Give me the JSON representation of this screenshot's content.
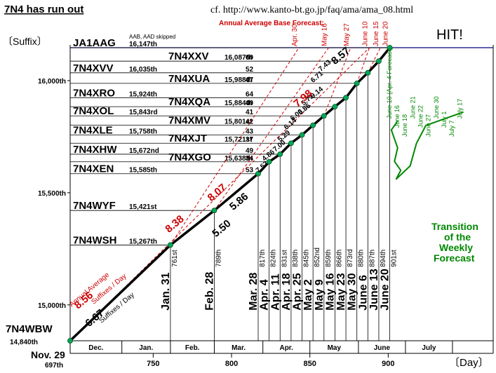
{
  "title": "7N4 has run out",
  "source": "cf. http://www.kanto-bt.go.jp/faq/ama/ama_08.html",
  "hit": "HIT!",
  "ylabel": "〔Suffix〕",
  "xlabel": "〔Day〕",
  "forecast_base_label": "Annual Average Base Forecast:",
  "trend_label": "Annual Average",
  "trend_rate": "8.56",
  "trend_unit": "Suffixes / Day",
  "actual_rate": "6.67",
  "actual_unit": "Suffixes / Day",
  "start_date": "Nov. 29",
  "start_day": "697th",
  "first_suffix": "7N4WBW",
  "first_number": "14,840th",
  "weekly_title": [
    "Transition",
    "of the",
    "Weekly",
    "Forecast"
  ],
  "colors": {
    "actual": "#000000",
    "forecast": "#cc0000",
    "weekly": "#008800",
    "point": "#00aa55",
    "hit_line": "#000080"
  },
  "chart_data": {
    "type": "line",
    "xlabel": "〔Day〕",
    "ylabel": "〔Suffix〕",
    "xlim": [
      697,
      967
    ],
    "ylim": [
      14840,
      16147
    ],
    "x_ticks": [
      750,
      800,
      850,
      900
    ],
    "y_ticks": [
      {
        "value": 15000,
        "label": "15,000th"
      },
      {
        "value": 15500,
        "label": "15,500th"
      },
      {
        "value": 16000,
        "label": "16,000th"
      }
    ],
    "month_labels": [
      "Dec.",
      "Jan.",
      "Feb.",
      "Mar.",
      "Apr.",
      "May",
      "June",
      "July"
    ],
    "month_bounds": [
      697,
      730,
      761,
      789,
      820,
      850,
      881,
      911,
      941,
      967
    ],
    "actual_series": {
      "name": "Actual",
      "points": [
        {
          "x": 697,
          "y": 14840
        },
        {
          "x": 761,
          "y": 15267
        },
        {
          "x": 789,
          "y": 15421
        },
        {
          "x": 817,
          "y": 15585
        },
        {
          "x": 824,
          "y": 15638
        },
        {
          "x": 831,
          "y": 15672
        },
        {
          "x": 838,
          "y": 15721
        },
        {
          "x": 845,
          "y": 15758
        },
        {
          "x": 852,
          "y": 15801
        },
        {
          "x": 859,
          "y": 15843
        },
        {
          "x": 866,
          "y": 15884
        },
        {
          "x": 873,
          "y": 15924
        },
        {
          "x": 880,
          "y": 15988
        },
        {
          "x": 887,
          "y": 16035
        },
        {
          "x": 894,
          "y": 16087
        },
        {
          "x": 901,
          "y": 16147
        }
      ]
    },
    "segment_rates": [
      {
        "x": 790,
        "y": 15300,
        "label": "5.50"
      },
      {
        "x": 801,
        "y": 15420,
        "label": "5.86"
      },
      {
        "x": 817,
        "y": 15588,
        "label": "7.57"
      },
      {
        "x": 821,
        "y": 15640,
        "label": "4.86"
      },
      {
        "x": 828,
        "y": 15682,
        "label": "7.00"
      },
      {
        "x": 831,
        "y": 15726,
        "label": "5.29"
      },
      {
        "x": 835,
        "y": 15780,
        "label": "6.14"
      },
      {
        "x": 839,
        "y": 15820,
        "label": "6.00"
      },
      {
        "x": 844,
        "y": 15846,
        "label": "5.86"
      },
      {
        "x": 846,
        "y": 15888,
        "label": "5.71"
      },
      {
        "x": 852,
        "y": 15920,
        "label": "9.14"
      },
      {
        "x": 852,
        "y": 15990,
        "label": "6.71"
      },
      {
        "x": 857,
        "y": 16040,
        "label": "7.43"
      },
      {
        "x": 866,
        "y": 16070,
        "label": "8.57"
      }
    ],
    "forecast_rates": [
      {
        "label": "8.38"
      },
      {
        "label": "8.07"
      },
      {
        "label": "7.98"
      }
    ],
    "forecast_dates": [
      "Apr. 30",
      "May 16",
      "May 27",
      "June 10",
      "June 15",
      "June 20"
    ],
    "suffix_labels": [
      {
        "suffix": "JA1AAG",
        "number": "16,147th",
        "note": "AAB, AAD skipped"
      },
      {
        "suffix": "7N4XXV",
        "number": "16,087th",
        "count": "60"
      },
      {
        "suffix": "7N4XVV",
        "number": "16,035th",
        "count": "52"
      },
      {
        "suffix": "7N4XUA",
        "number": "15,988th",
        "count": "47"
      },
      {
        "suffix": "7N4XRO",
        "number": "15,924th",
        "count": "64"
      },
      {
        "suffix": "7N4XQA",
        "number": "15,884th",
        "count": "40"
      },
      {
        "suffix": "7N4XOL",
        "number": "15,843rd",
        "count": "41"
      },
      {
        "suffix": "7N4XMV",
        "number": "15,801st",
        "count": "42"
      },
      {
        "suffix": "7N4XLE",
        "number": "15,758th",
        "count": "43"
      },
      {
        "suffix": "7N4XJT",
        "number": "15,721st",
        "count": "37"
      },
      {
        "suffix": "7N4XHW",
        "number": "15,672nd",
        "count": "49"
      },
      {
        "suffix": "7N4XGO",
        "number": "15,638th",
        "count": "34"
      },
      {
        "suffix": "7N4XEN",
        "number": "15,585th",
        "count": "53"
      },
      {
        "suffix": "7N4WYF",
        "number": "15,421st"
      },
      {
        "suffix": "7N4WSH",
        "number": "15,267th"
      }
    ],
    "date_labels": [
      {
        "date": "Jan. 31",
        "day": "761st"
      },
      {
        "date": "Feb. 28",
        "day": "789th"
      },
      {
        "date": "Mar. 28",
        "day": "817th"
      },
      {
        "date": "Apr. 4",
        "day": "824th"
      },
      {
        "date": "Apr. 11",
        "day": "831st"
      },
      {
        "date": "Apr. 18",
        "day": "838th"
      },
      {
        "date": "Apr. 25",
        "day": "845th"
      },
      {
        "date": "May 2",
        "day": "852nd"
      },
      {
        "date": "May 9",
        "day": "859th"
      },
      {
        "date": "May 16",
        "day": "866th"
      },
      {
        "date": "May 23",
        "day": "873rd"
      },
      {
        "date": "May 30",
        "day": "880th"
      },
      {
        "date": "June 6",
        "day": "887th"
      },
      {
        "date": "June 13",
        "day": "894th"
      },
      {
        "date": "June 20",
        "day": "901st"
      }
    ],
    "weekly_forecast": {
      "name": "Weekly Forecast",
      "points_labels": [
        "June 10 (Apr. 4 Forecast)",
        "June 16",
        "June 18",
        "June 21",
        "June 22",
        "June 27",
        "June 30",
        "July 1",
        "July 7",
        "July 17"
      ]
    }
  }
}
